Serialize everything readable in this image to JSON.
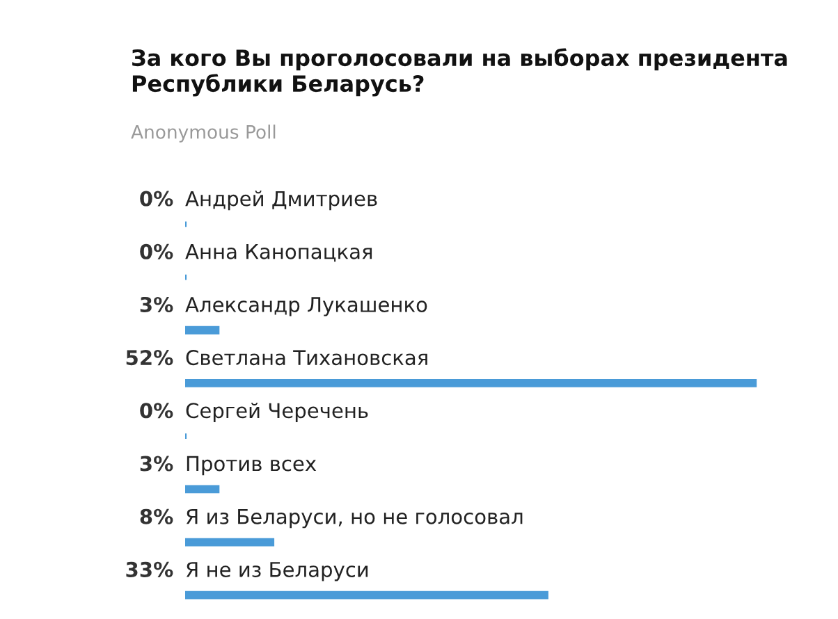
{
  "chart_data": {
    "type": "bar",
    "orientation": "horizontal",
    "title": "За кого Вы проголосовали на выборах президента Республики Беларусь?",
    "subtitle": "Anonymous Poll",
    "categories": [
      "Андрей Дмитриев",
      "Анна Канопацкая",
      "Александр Лукашенко",
      "Светлана Тихановская",
      "Сергей Черечень",
      "Против всех",
      "Я из Беларуси, но не голосовал",
      "Я не из Беларуси"
    ],
    "values": [
      0,
      0,
      3,
      52,
      0,
      3,
      8,
      33
    ],
    "value_labels": [
      "0%",
      "0%",
      "3%",
      "52%",
      "0%",
      "3%",
      "8%",
      "33%"
    ],
    "color": "#4a9bd8"
  }
}
